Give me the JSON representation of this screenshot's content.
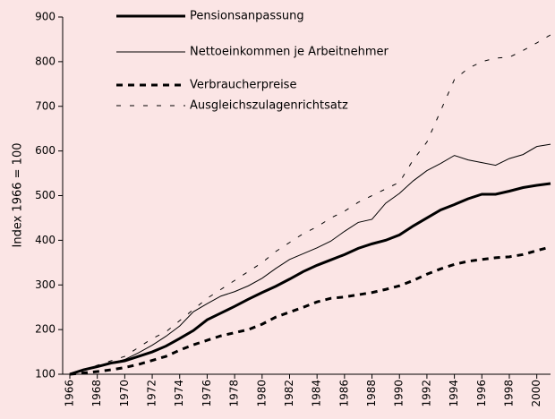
{
  "chart_data": {
    "type": "line",
    "ylabel": "Index 1966 = 100",
    "x": [
      1966,
      1967,
      1968,
      1969,
      1970,
      1971,
      1972,
      1973,
      1974,
      1975,
      1976,
      1977,
      1978,
      1979,
      1980,
      1981,
      1982,
      1983,
      1984,
      1985,
      1986,
      1987,
      1988,
      1989,
      1990,
      1991,
      1992,
      1993,
      1994,
      1995,
      1996,
      1997,
      1998,
      1999,
      2000,
      2001
    ],
    "xlim": [
      1966,
      2001
    ],
    "xticks": [
      1966,
      1968,
      1970,
      1972,
      1974,
      1976,
      1978,
      1980,
      1982,
      1984,
      1986,
      1988,
      1990,
      1992,
      1994,
      1996,
      1998,
      2000
    ],
    "ylim": [
      100,
      900
    ],
    "yticks": [
      100,
      200,
      300,
      400,
      500,
      600,
      700,
      800,
      900
    ],
    "grid": false,
    "series": [
      {
        "name": "Pensionsanpassung",
        "color": "#000000",
        "width": 3,
        "dash": false,
        "values": [
          100,
          110,
          117,
          125,
          130,
          140,
          150,
          163,
          180,
          198,
          222,
          237,
          252,
          268,
          283,
          297,
          313,
          330,
          344,
          356,
          368,
          382,
          392,
          400,
          412,
          432,
          450,
          468,
          480,
          493,
          503,
          503,
          510,
          518,
          523,
          527
        ]
      },
      {
        "name": "Nettoeinkommen je Arbeitnehmer",
        "color": "#000000",
        "width": 1,
        "dash": false,
        "values": [
          100,
          110,
          118,
          125,
          133,
          148,
          165,
          185,
          208,
          240,
          258,
          275,
          285,
          298,
          315,
          337,
          357,
          370,
          383,
          398,
          420,
          440,
          447,
          483,
          505,
          533,
          556,
          572,
          590,
          580,
          574,
          568,
          583,
          592,
          610,
          615
        ]
      },
      {
        "name": "Verbraucherpreise",
        "color": "#000000",
        "width": 3,
        "dash": true,
        "values": [
          100,
          103,
          106,
          110,
          115,
          122,
          131,
          140,
          154,
          166,
          176,
          186,
          193,
          200,
          212,
          228,
          239,
          250,
          262,
          270,
          273,
          278,
          283,
          290,
          298,
          310,
          324,
          336,
          346,
          353,
          357,
          361,
          363,
          368,
          377,
          385
        ]
      },
      {
        "name": "Ausgleichszulagenrichtsatz",
        "color": "#000000",
        "width": 1,
        "dash": true,
        "values": [
          100,
          110,
          120,
          130,
          140,
          160,
          180,
          195,
          220,
          245,
          270,
          290,
          310,
          330,
          350,
          375,
          395,
          415,
          430,
          450,
          465,
          485,
          500,
          515,
          530,
          580,
          620,
          690,
          760,
          785,
          800,
          808,
          810,
          825,
          842,
          860
        ]
      }
    ]
  }
}
